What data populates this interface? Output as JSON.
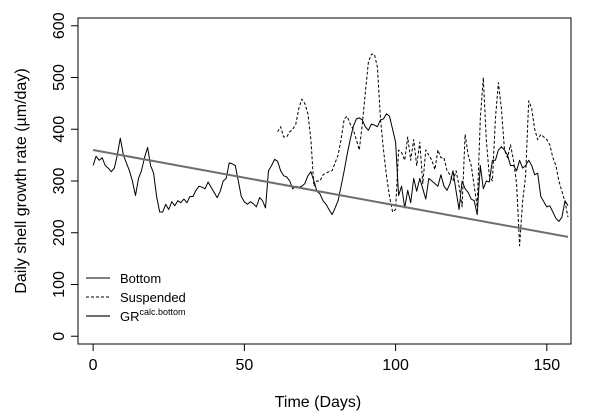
{
  "chart_data": {
    "type": "line",
    "title": "",
    "xlabel": "Time (Days)",
    "ylabel": "Daily shell growth rate (µm/day)",
    "xlim": [
      -5,
      158
    ],
    "ylim": [
      -15,
      615
    ],
    "x_ticks": [
      0,
      50,
      100,
      150
    ],
    "x_tick_labels": [
      "0",
      "50",
      "100",
      "150"
    ],
    "y_ticks": [
      0,
      100,
      200,
      300,
      400,
      500,
      600
    ],
    "y_tick_labels": [
      "0",
      "100",
      "200",
      "300",
      "400",
      "500",
      "600"
    ],
    "grid": false,
    "legend_position": "bottom-left",
    "legend": [
      {
        "label": "Bottom",
        "sup": "",
        "style": "solid",
        "color": "#000000"
      },
      {
        "label": "Suspended",
        "sup": "",
        "style": "dashed",
        "color": "#000000"
      },
      {
        "label": "GR",
        "sup": "calc.bottom",
        "style": "solid",
        "color": "#6e6e6e"
      }
    ],
    "series": [
      {
        "name": "Bottom",
        "style": "solid",
        "color": "#000000",
        "x": [
          0,
          1,
          2,
          3,
          4,
          5,
          6,
          7,
          8,
          9,
          10,
          11,
          12,
          13,
          14,
          15,
          16,
          17,
          18,
          19,
          20,
          21,
          22,
          23,
          24,
          25,
          26,
          27,
          28,
          29,
          30,
          31,
          32,
          33,
          34,
          35,
          36,
          37,
          38,
          39,
          40,
          41,
          42,
          43,
          44,
          45,
          46,
          47,
          48,
          49,
          50,
          51,
          52,
          53,
          54,
          55,
          56,
          57,
          58,
          59,
          60,
          61,
          62,
          63,
          64,
          65,
          66,
          67,
          68,
          69,
          70,
          71,
          72,
          73,
          74,
          75,
          76,
          77,
          78,
          79,
          80,
          81,
          82,
          83,
          84,
          85,
          86,
          87,
          88,
          89,
          90,
          91,
          92,
          93,
          94,
          95,
          96,
          97,
          98,
          99,
          100,
          101,
          102,
          103,
          104,
          105,
          106,
          107,
          108,
          109,
          110,
          111,
          112,
          113,
          114,
          115,
          116,
          117,
          118,
          119,
          120,
          121,
          122,
          123,
          124,
          125,
          126,
          127,
          128,
          129,
          130,
          131,
          132,
          133,
          134,
          135,
          136,
          137,
          138,
          139,
          140,
          141,
          142,
          143,
          144,
          145,
          146,
          147,
          148,
          149,
          150,
          151,
          152,
          153,
          154,
          155,
          156,
          157
        ],
        "y": [
          330,
          348,
          340,
          345,
          330,
          325,
          318,
          325,
          350,
          383,
          350,
          335,
          320,
          300,
          272,
          305,
          320,
          345,
          365,
          330,
          315,
          270,
          240,
          240,
          255,
          245,
          260,
          252,
          262,
          258,
          265,
          258,
          270,
          270,
          282,
          290,
          288,
          285,
          298,
          288,
          278,
          268,
          280,
          300,
          305,
          335,
          333,
          330,
          300,
          270,
          260,
          255,
          260,
          256,
          250,
          268,
          262,
          248,
          320,
          330,
          342,
          338,
          320,
          310,
          308,
          300,
          285,
          290,
          288,
          290,
          295,
          310,
          318,
          300,
          280,
          275,
          262,
          255,
          245,
          235,
          248,
          262,
          290,
          320,
          352,
          380,
          405,
          420,
          422,
          418,
          405,
          398,
          410,
          408,
          405,
          418,
          420,
          430,
          425,
          400,
          375,
          272,
          290,
          248,
          282,
          258,
          305,
          280,
          305,
          285,
          265,
          305,
          300,
          295,
          290,
          312,
          290,
          282,
          295,
          320,
          280,
          245,
          300,
          285,
          278,
          265,
          262,
          235,
          330,
          285,
          300,
          298,
          340,
          340,
          360,
          366,
          360,
          350,
          330,
          330,
          320,
          340,
          325,
          330,
          340,
          330,
          312,
          315,
          270,
          260,
          250,
          252,
          240,
          228,
          222,
          230,
          262,
          252
        ]
      },
      {
        "name": "Suspended",
        "style": "dashed",
        "color": "#000000",
        "x": [
          61,
          62,
          63,
          64,
          65,
          66,
          67,
          68,
          69,
          70,
          71,
          72,
          73,
          74,
          75,
          76,
          77,
          78,
          79,
          80,
          81,
          82,
          83,
          84,
          85,
          86,
          87,
          88,
          89,
          90,
          91,
          92,
          93,
          94,
          95,
          96,
          97,
          98,
          99,
          100,
          101,
          102,
          103,
          104,
          105,
          106,
          107,
          108,
          109,
          110,
          111,
          112,
          113,
          114,
          115,
          116,
          117,
          118,
          119,
          120,
          121,
          122,
          123,
          124,
          125,
          126,
          127,
          128,
          129,
          130,
          131,
          132,
          133,
          134,
          135,
          136,
          137,
          138,
          139,
          140,
          141,
          142,
          143,
          144,
          145,
          146,
          147,
          148,
          149,
          150,
          151,
          152,
          153,
          154,
          155,
          156,
          157
        ],
        "y": [
          395,
          405,
          385,
          385,
          395,
          400,
          410,
          440,
          458,
          450,
          430,
          380,
          290,
          300,
          300,
          312,
          315,
          318,
          320,
          335,
          350,
          380,
          420,
          425,
          410,
          400,
          380,
          360,
          410,
          470,
          530,
          545,
          545,
          520,
          420,
          360,
          310,
          270,
          240,
          245,
          360,
          355,
          340,
          385,
          340,
          380,
          330,
          375,
          295,
          360,
          350,
          340,
          322,
          360,
          345,
          345,
          320,
          312,
          300,
          320,
          290,
          250,
          390,
          350,
          330,
          290,
          250,
          420,
          500,
          380,
          310,
          300,
          420,
          490,
          440,
          360,
          345,
          370,
          340,
          295,
          175,
          260,
          310,
          455,
          440,
          400,
          380,
          390,
          385,
          380,
          370,
          345,
          330,
          300,
          280,
          260,
          230
        ]
      },
      {
        "name": "GR",
        "sup": "calc.bottom",
        "style": "solid",
        "color": "#6e6e6e",
        "x": [
          0,
          157
        ],
        "y": [
          360,
          192
        ]
      }
    ]
  }
}
